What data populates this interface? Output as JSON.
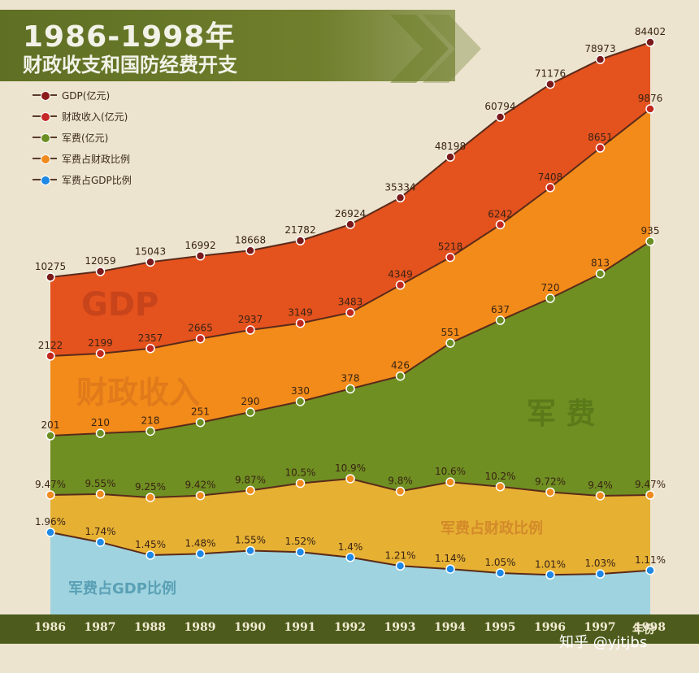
{
  "title": {
    "line1": "1986-1998年",
    "line2": "财政收支和国防经费开支"
  },
  "legend": [
    {
      "label": "GDP(亿元)",
      "color": "#8b1a1a"
    },
    {
      "label": "财政收入(亿元)",
      "color": "#c62828"
    },
    {
      "label": "军费(亿元)",
      "color": "#6b8e23"
    },
    {
      "label": "军费占财政比例",
      "color": "#f08a1c"
    },
    {
      "label": "军费占GDP比例",
      "color": "#1e88e5"
    }
  ],
  "area_labels": {
    "gdp": "GDP",
    "revenue": "财政收入",
    "military": "军 费",
    "ratio_revenue": "军费占财政比例",
    "ratio_gdp": "军费占GDP比例"
  },
  "x_unit": "年份",
  "watermark": "知乎 @yjtjbs",
  "colors": {
    "gdp_fill": "#e4521e",
    "revenue_fill": "#f28b1a",
    "military_fill": "#6f8f22",
    "ratio_revenue_fill": "#e6b033",
    "ratio_gdp_fill": "#9fd3df",
    "axis_band": "#4d5c1c"
  },
  "chart_data": {
    "type": "area",
    "x": [
      "1986",
      "1987",
      "1988",
      "1989",
      "1990",
      "1991",
      "1992",
      "1993",
      "1994",
      "1995",
      "1996",
      "1997",
      "1998"
    ],
    "series": [
      {
        "name": "GDP(亿元)",
        "values": [
          10275,
          12059,
          15043,
          16992,
          18668,
          21782,
          26924,
          35334,
          48198,
          60794,
          71176,
          78973,
          84402
        ],
        "labels": [
          "10275",
          "12059",
          "15043",
          "16992",
          "18668",
          "21782",
          "26924",
          "35334",
          "48198",
          "60794",
          "71176",
          "78973",
          "84402"
        ]
      },
      {
        "name": "财政收入(亿元)",
        "values": [
          2122,
          2199,
          2357,
          2665,
          2937,
          3149,
          3483,
          4349,
          5218,
          6242,
          7408,
          8651,
          9876
        ],
        "labels": [
          "2122",
          "2199",
          "2357",
          "2665",
          "2937",
          "3149",
          "3483",
          "4349",
          "5218",
          "6242",
          "7408",
          "8651",
          "9876"
        ]
      },
      {
        "name": "军费(亿元)",
        "values": [
          201,
          210,
          218,
          251,
          290,
          330,
          378,
          426,
          551,
          637,
          720,
          813,
          935
        ],
        "labels": [
          "201",
          "210",
          "218",
          "251",
          "290",
          "330",
          "378",
          "426",
          "551",
          "637",
          "720",
          "813",
          "935"
        ]
      },
      {
        "name": "军费占财政比例",
        "values": [
          9.47,
          9.55,
          9.25,
          9.42,
          9.87,
          10.5,
          10.9,
          9.8,
          10.6,
          10.2,
          9.72,
          9.4,
          9.47
        ],
        "labels": [
          "9.47%",
          "9.55%",
          "9.25%",
          "9.42%",
          "9.87%",
          "10.5%",
          "10.9%",
          "9.8%",
          "10.6%",
          "10.2%",
          "9.72%",
          "9.4%",
          "9.47%"
        ]
      },
      {
        "name": "军费占GDP比例",
        "values": [
          1.96,
          1.74,
          1.45,
          1.48,
          1.55,
          1.52,
          1.4,
          1.21,
          1.14,
          1.05,
          1.01,
          1.03,
          1.11
        ],
        "labels": [
          "1.96%",
          "1.74%",
          "1.45%",
          "1.48%",
          "1.55%",
          "1.52%",
          "1.4%",
          "1.21%",
          "1.14%",
          "1.05%",
          "1.01%",
          "1.03%",
          "1.11%"
        ]
      }
    ]
  }
}
